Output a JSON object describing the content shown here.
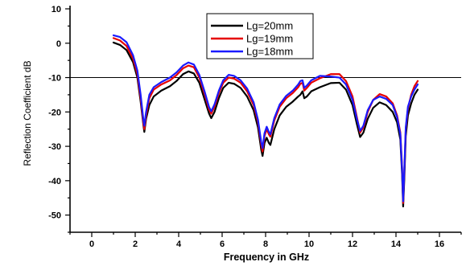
{
  "chart_data": {
    "type": "line",
    "xlabel": "Frequency in GHz",
    "ylabel": "Reflection Coefficient dB",
    "xlim": [
      -1,
      17
    ],
    "ylim": [
      -55,
      10
    ],
    "xticks": [
      0,
      2,
      4,
      6,
      8,
      10,
      12,
      14,
      16
    ],
    "yticks": [
      10,
      0,
      -10,
      -20,
      -30,
      -40,
      -50
    ],
    "grid": false,
    "legend_position": "top-center",
    "reference_line": {
      "y": -10,
      "color": "#000000"
    },
    "series": [
      {
        "name": "Lg=20mm",
        "color": "#000000",
        "points": [
          [
            1,
            0.2
          ],
          [
            1.3,
            -0.5
          ],
          [
            1.6,
            -2
          ],
          [
            1.9,
            -5.5
          ],
          [
            2.1,
            -10
          ],
          [
            2.25,
            -17
          ],
          [
            2.38,
            -24
          ],
          [
            2.42,
            -25.8
          ],
          [
            2.5,
            -22
          ],
          [
            2.65,
            -18
          ],
          [
            2.85,
            -15.5
          ],
          [
            3.2,
            -13.8
          ],
          [
            3.6,
            -12.5
          ],
          [
            3.9,
            -11
          ],
          [
            4.2,
            -9
          ],
          [
            4.45,
            -8.2
          ],
          [
            4.7,
            -8.8
          ],
          [
            4.95,
            -11.5
          ],
          [
            5.2,
            -16.5
          ],
          [
            5.4,
            -20.5
          ],
          [
            5.5,
            -21.8
          ],
          [
            5.65,
            -20
          ],
          [
            5.85,
            -16
          ],
          [
            6.05,
            -13
          ],
          [
            6.3,
            -11.5
          ],
          [
            6.55,
            -11.8
          ],
          [
            6.85,
            -13
          ],
          [
            7.15,
            -15.5
          ],
          [
            7.45,
            -19.5
          ],
          [
            7.65,
            -24.5
          ],
          [
            7.8,
            -31
          ],
          [
            7.86,
            -32.8
          ],
          [
            7.95,
            -29
          ],
          [
            8.05,
            -27.5
          ],
          [
            8.15,
            -29
          ],
          [
            8.22,
            -29.6
          ],
          [
            8.4,
            -25
          ],
          [
            8.65,
            -21
          ],
          [
            8.95,
            -18.5
          ],
          [
            9.25,
            -17
          ],
          [
            9.5,
            -15.5
          ],
          [
            9.6,
            -15
          ],
          [
            9.7,
            -14
          ],
          [
            9.78,
            -16
          ],
          [
            9.9,
            -15.5
          ],
          [
            10.1,
            -14
          ],
          [
            10.5,
            -12.8
          ],
          [
            11,
            -11.6
          ],
          [
            11.4,
            -11.5
          ],
          [
            11.7,
            -13.5
          ],
          [
            12,
            -18
          ],
          [
            12.2,
            -23.5
          ],
          [
            12.35,
            -27.3
          ],
          [
            12.5,
            -26
          ],
          [
            12.7,
            -22
          ],
          [
            12.95,
            -18.8
          ],
          [
            13.25,
            -17.2
          ],
          [
            13.55,
            -18
          ],
          [
            13.85,
            -20
          ],
          [
            14.05,
            -23
          ],
          [
            14.2,
            -28
          ],
          [
            14.28,
            -38
          ],
          [
            14.33,
            -47.5
          ],
          [
            14.38,
            -40
          ],
          [
            14.45,
            -27
          ],
          [
            14.55,
            -21
          ],
          [
            14.7,
            -17.5
          ],
          [
            14.85,
            -15
          ],
          [
            15,
            -13.5
          ]
        ]
      },
      {
        "name": "Lg=19mm",
        "color": "#e60000",
        "points": [
          [
            1,
            1.5
          ],
          [
            1.3,
            0.8
          ],
          [
            1.6,
            -0.8
          ],
          [
            1.9,
            -4.5
          ],
          [
            2.1,
            -9
          ],
          [
            2.25,
            -16
          ],
          [
            2.38,
            -23.5
          ],
          [
            2.42,
            -25
          ],
          [
            2.5,
            -21
          ],
          [
            2.65,
            -16
          ],
          [
            2.85,
            -13.5
          ],
          [
            3.2,
            -12
          ],
          [
            3.6,
            -10.8
          ],
          [
            3.9,
            -9.3
          ],
          [
            4.2,
            -7.3
          ],
          [
            4.45,
            -6.5
          ],
          [
            4.7,
            -7
          ],
          [
            4.95,
            -10
          ],
          [
            5.2,
            -15
          ],
          [
            5.4,
            -19.3
          ],
          [
            5.5,
            -20.5
          ],
          [
            5.65,
            -18.5
          ],
          [
            5.85,
            -14.5
          ],
          [
            6.05,
            -11.5
          ],
          [
            6.3,
            -10
          ],
          [
            6.55,
            -10.3
          ],
          [
            6.85,
            -11.5
          ],
          [
            7.15,
            -14
          ],
          [
            7.45,
            -18
          ],
          [
            7.65,
            -23
          ],
          [
            7.8,
            -29.5
          ],
          [
            7.86,
            -31.5
          ],
          [
            7.95,
            -27
          ],
          [
            8.05,
            -25
          ],
          [
            8.15,
            -26.5
          ],
          [
            8.22,
            -27.2
          ],
          [
            8.4,
            -22.5
          ],
          [
            8.65,
            -18.5
          ],
          [
            8.95,
            -16
          ],
          [
            9.25,
            -14.5
          ],
          [
            9.5,
            -12.8
          ],
          [
            9.6,
            -11.8
          ],
          [
            9.7,
            -11.5
          ],
          [
            9.78,
            -13.8
          ],
          [
            9.9,
            -13
          ],
          [
            10.1,
            -11.5
          ],
          [
            10.5,
            -10.2
          ],
          [
            11,
            -9
          ],
          [
            11.4,
            -9
          ],
          [
            11.7,
            -11
          ],
          [
            12,
            -15.5
          ],
          [
            12.2,
            -21.5
          ],
          [
            12.35,
            -26
          ],
          [
            12.5,
            -24.5
          ],
          [
            12.7,
            -20
          ],
          [
            12.95,
            -16.5
          ],
          [
            13.25,
            -14.8
          ],
          [
            13.55,
            -15.5
          ],
          [
            13.85,
            -17.5
          ],
          [
            14.05,
            -21
          ],
          [
            14.2,
            -26
          ],
          [
            14.28,
            -36
          ],
          [
            14.33,
            -46.5
          ],
          [
            14.38,
            -38
          ],
          [
            14.45,
            -25
          ],
          [
            14.55,
            -19
          ],
          [
            14.7,
            -15
          ],
          [
            14.85,
            -12.5
          ],
          [
            15,
            -11
          ]
        ]
      },
      {
        "name": "Lg=18mm",
        "color": "#1a1aff",
        "points": [
          [
            1,
            2.3
          ],
          [
            1.3,
            1.8
          ],
          [
            1.6,
            0.3
          ],
          [
            1.9,
            -3.5
          ],
          [
            2.1,
            -8
          ],
          [
            2.25,
            -15
          ],
          [
            2.38,
            -22.5
          ],
          [
            2.42,
            -24
          ],
          [
            2.5,
            -20
          ],
          [
            2.65,
            -15
          ],
          [
            2.85,
            -12.8
          ],
          [
            3.2,
            -11.3
          ],
          [
            3.6,
            -10
          ],
          [
            3.9,
            -8.5
          ],
          [
            4.2,
            -6.5
          ],
          [
            4.45,
            -5.6
          ],
          [
            4.7,
            -6.2
          ],
          [
            4.95,
            -9.2
          ],
          [
            5.2,
            -14.2
          ],
          [
            5.4,
            -18.6
          ],
          [
            5.5,
            -19.8
          ],
          [
            5.65,
            -17.8
          ],
          [
            5.85,
            -13.8
          ],
          [
            6.05,
            -10.8
          ],
          [
            6.3,
            -9.2
          ],
          [
            6.55,
            -9.5
          ],
          [
            6.85,
            -10.8
          ],
          [
            7.15,
            -13.2
          ],
          [
            7.45,
            -17.2
          ],
          [
            7.65,
            -22.3
          ],
          [
            7.8,
            -28.8
          ],
          [
            7.86,
            -30.5
          ],
          [
            7.95,
            -26.2
          ],
          [
            8.05,
            -24.3
          ],
          [
            8.15,
            -25.8
          ],
          [
            8.22,
            -26.5
          ],
          [
            8.4,
            -21.8
          ],
          [
            8.65,
            -17.8
          ],
          [
            8.95,
            -15.3
          ],
          [
            9.25,
            -13.8
          ],
          [
            9.5,
            -12
          ],
          [
            9.6,
            -11
          ],
          [
            9.7,
            -10.8
          ],
          [
            9.78,
            -13
          ],
          [
            9.9,
            -12.3
          ],
          [
            10.1,
            -10.8
          ],
          [
            10.5,
            -9.5
          ],
          [
            11,
            -9.7
          ],
          [
            11.4,
            -10
          ],
          [
            11.7,
            -12
          ],
          [
            12,
            -16.5
          ],
          [
            12.2,
            -22
          ],
          [
            12.35,
            -25.5
          ],
          [
            12.5,
            -24
          ],
          [
            12.7,
            -19.5
          ],
          [
            12.95,
            -16.5
          ],
          [
            13.25,
            -15.5
          ],
          [
            13.55,
            -16.2
          ],
          [
            13.85,
            -18
          ],
          [
            14.05,
            -21.5
          ],
          [
            14.2,
            -26.5
          ],
          [
            14.28,
            -36.5
          ],
          [
            14.33,
            -46
          ],
          [
            14.38,
            -37.5
          ],
          [
            14.45,
            -24.5
          ],
          [
            14.55,
            -18.5
          ],
          [
            14.7,
            -15.5
          ],
          [
            14.85,
            -13.5
          ],
          [
            15,
            -12
          ]
        ]
      }
    ]
  }
}
